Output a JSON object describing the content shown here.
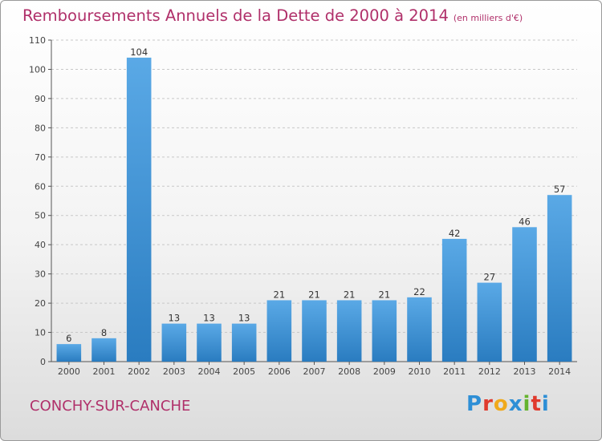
{
  "header": {
    "title": "Remboursements Annuels de la Dette de 2000 à 2014",
    "unit": "(en milliers d'€)"
  },
  "footer": {
    "city": "CONCHY-SUR-CANCHE",
    "logo": "Proxiti",
    "logo_colors": [
      "#2e8fd6",
      "#e03a2d",
      "#f0a91b",
      "#2e8fd6",
      "#65b32e",
      "#e03a2d",
      "#2e8fd6"
    ]
  },
  "colors": {
    "bar_top": "#5aa9e6",
    "bar_bottom": "#2a7cc0",
    "grid": "#c8c8c8",
    "title": "#b0306a"
  },
  "chart_data": {
    "type": "bar",
    "title": "Remboursements Annuels de la Dette de 2000 à 2014",
    "ylabel": "",
    "xlabel": "",
    "categories": [
      "2000",
      "2001",
      "2002",
      "2003",
      "2004",
      "2005",
      "2006",
      "2007",
      "2008",
      "2009",
      "2010",
      "2011",
      "2012",
      "2013",
      "2014"
    ],
    "values": [
      6,
      8,
      104,
      13,
      13,
      13,
      21,
      21,
      21,
      21,
      22,
      42,
      27,
      46,
      57
    ],
    "ylim": [
      0,
      110
    ],
    "yticks": [
      0,
      10,
      20,
      30,
      40,
      50,
      60,
      70,
      80,
      90,
      100,
      110
    ],
    "grid": true
  }
}
